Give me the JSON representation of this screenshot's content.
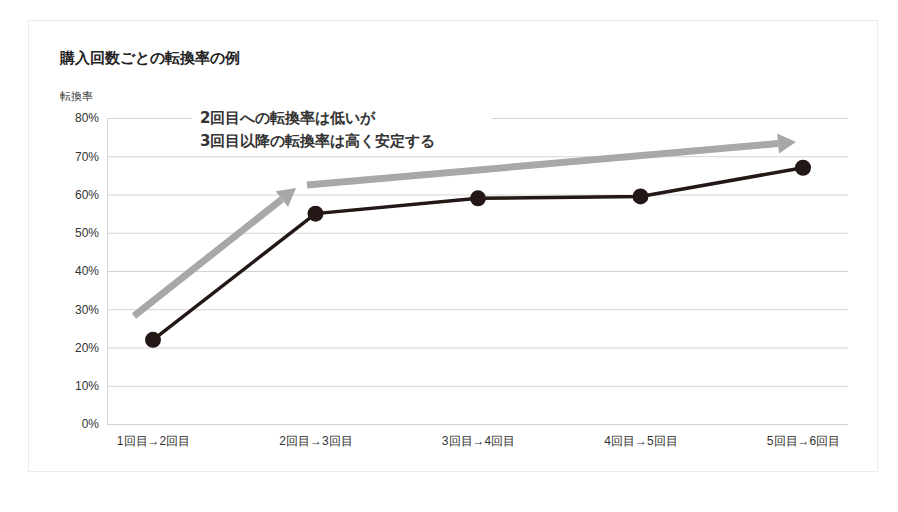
{
  "chart_data": {
    "type": "line",
    "title": "購入回数ごとの転換率の例",
    "y_label": "転換率",
    "annotations": [
      "2回目への転換率は低いが",
      "3回目以降の転換率は高く安定する"
    ],
    "categories": [
      "1回目→2回目",
      "2回目→3回目",
      "3回目→4回目",
      "4回目→5回目",
      "5回目→6回目"
    ],
    "values": [
      22,
      55,
      59,
      59.5,
      67
    ],
    "color": "#231815",
    "marker": "circle",
    "line_style": "solid",
    "ylim": [
      0,
      80
    ],
    "yticks": [
      {
        "value": 0,
        "label": "0%"
      },
      {
        "value": 10,
        "label": "10%"
      },
      {
        "value": 20,
        "label": "20%"
      },
      {
        "value": 30,
        "label": "30%"
      },
      {
        "value": 40,
        "label": "40%"
      },
      {
        "value": 50,
        "label": "50%"
      },
      {
        "value": 60,
        "label": "60%"
      },
      {
        "value": 70,
        "label": "70%"
      },
      {
        "value": 80,
        "label": "80%"
      }
    ],
    "grid": true
  }
}
